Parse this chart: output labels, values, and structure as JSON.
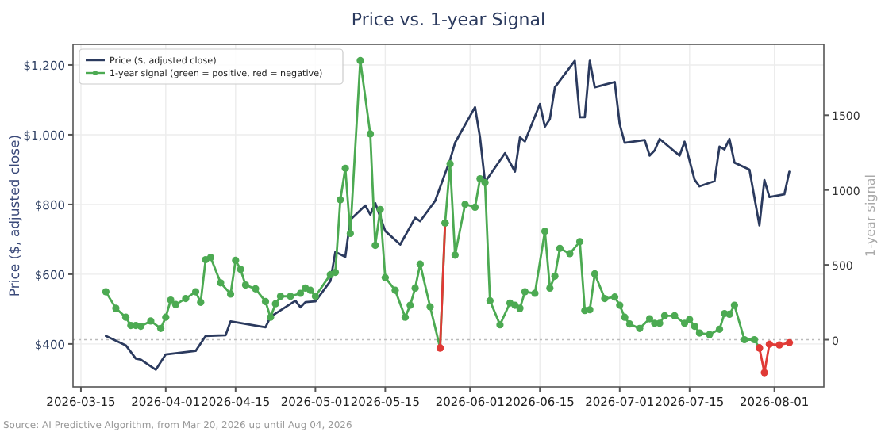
{
  "chart_data": {
    "type": "line",
    "title": "Price vs. 1-year Signal",
    "ylabel": "Price ($, adjusted close)",
    "y2label": "1-year signal",
    "xlim": [
      "2026-03-13T10:00",
      "2026-08-10T22:00"
    ],
    "xticks": [
      "2026-03-15",
      "2026-04-01",
      "2026-04-15",
      "2026-05-01",
      "2026-05-15",
      "2026-06-01",
      "2026-06-15",
      "2026-07-01",
      "2026-07-15",
      "2026-08-01"
    ],
    "ylim": [
      277,
      1259
    ],
    "yticks": [
      {
        "value": 400,
        "label": "$400"
      },
      {
        "value": 600,
        "label": "$600"
      },
      {
        "value": 800,
        "label": "$800"
      },
      {
        "value": 1000,
        "label": "$1,000"
      },
      {
        "value": 1200,
        "label": "$1,200"
      }
    ],
    "y2lim": [
      -315,
      1973
    ],
    "y2ticks": [
      0,
      500,
      1000,
      1500
    ],
    "grid": true,
    "legend": "top left",
    "ref_lines": [
      {
        "axis": "y2",
        "value": 0,
        "color": "#bbbbbb",
        "line_style": "dotted"
      }
    ],
    "annotations": [
      "Source: AI Predictive Algorithm, from Mar 20, 2026 up until Aug 04, 2026"
    ],
    "series": [
      {
        "name": "Price ($, adjusted close)",
        "color": "#2b3a5e",
        "marker": "none",
        "x": [
          "2026-03-20",
          "2026-03-24",
          "2026-03-26",
          "2026-03-27",
          "2026-03-30",
          "2026-04-01",
          "2026-04-07",
          "2026-04-09",
          "2026-04-13",
          "2026-04-14",
          "2026-04-21",
          "2026-04-22",
          "2026-04-27",
          "2026-04-28",
          "2026-04-29",
          "2026-05-01",
          "2026-05-04",
          "2026-05-05",
          "2026-05-07",
          "2026-05-08",
          "2026-05-11",
          "2026-05-12",
          "2026-05-13",
          "2026-05-15",
          "2026-05-18",
          "2026-05-21",
          "2026-05-22",
          "2026-05-25",
          "2026-05-28",
          "2026-05-29",
          "2026-06-02",
          "2026-06-03",
          "2026-06-04",
          "2026-06-08",
          "2026-06-10",
          "2026-06-11",
          "2026-06-12",
          "2026-06-15",
          "2026-06-16",
          "2026-06-17",
          "2026-06-18",
          "2026-06-22",
          "2026-06-23",
          "2026-06-24",
          "2026-06-25",
          "2026-06-26",
          "2026-06-30",
          "2026-07-01",
          "2026-07-02",
          "2026-07-06",
          "2026-07-07",
          "2026-07-08",
          "2026-07-09",
          "2026-07-13",
          "2026-07-14",
          "2026-07-16",
          "2026-07-17",
          "2026-07-20",
          "2026-07-21",
          "2026-07-22",
          "2026-07-23",
          "2026-07-24",
          "2026-07-27",
          "2026-07-29",
          "2026-07-30",
          "2026-07-31",
          "2026-08-03",
          "2026-08-04"
        ],
        "values": [
          423,
          396,
          358,
          355,
          326,
          370,
          380,
          423,
          425,
          465,
          448,
          478,
          524,
          505,
          520,
          522,
          580,
          664,
          650,
          756,
          797,
          771,
          804,
          724,
          685,
          762,
          752,
          810,
          928,
          977,
          1079,
          992,
          864,
          947,
          894,
          992,
          981,
          1088,
          1023,
          1045,
          1136,
          1212,
          1050,
          1050,
          1212,
          1136,
          1151,
          1030,
          977,
          985,
          940,
          955,
          988,
          940,
          980,
          871,
          852,
          867,
          966,
          958,
          988,
          920,
          900,
          740,
          870,
          821,
          829,
          894
        ]
      },
      {
        "name": "1-year signal (green = positive, red = negative)",
        "color": "#4caa52",
        "marker": "circle",
        "axis": "y2",
        "x": [
          "2026-03-20",
          "2026-03-22",
          "2026-03-24",
          "2026-03-25",
          "2026-03-26",
          "2026-03-27",
          "2026-03-29",
          "2026-03-31",
          "2026-04-01",
          "2026-04-02",
          "2026-04-03",
          "2026-04-05",
          "2026-04-07",
          "2026-04-08",
          "2026-04-09",
          "2026-04-10",
          "2026-04-12",
          "2026-04-14",
          "2026-04-15",
          "2026-04-16",
          "2026-04-17",
          "2026-04-19",
          "2026-04-21",
          "2026-04-22",
          "2026-04-23",
          "2026-04-24",
          "2026-04-26",
          "2026-04-28",
          "2026-04-29",
          "2026-04-30",
          "2026-05-01",
          "2026-05-04",
          "2026-05-05",
          "2026-05-06",
          "2026-05-07",
          "2026-05-08",
          "2026-05-10",
          "2026-05-12",
          "2026-05-13",
          "2026-05-14",
          "2026-05-15",
          "2026-05-17",
          "2026-05-19",
          "2026-05-20",
          "2026-05-21",
          "2026-05-22",
          "2026-05-24",
          "2026-05-26",
          "2026-05-27",
          "2026-05-28",
          "2026-05-29",
          "2026-05-31",
          "2026-06-02",
          "2026-06-03",
          "2026-06-04",
          "2026-06-05",
          "2026-06-07",
          "2026-06-09",
          "2026-06-10",
          "2026-06-11",
          "2026-06-12",
          "2026-06-14",
          "2026-06-16",
          "2026-06-17",
          "2026-06-18",
          "2026-06-19",
          "2026-06-21",
          "2026-06-23",
          "2026-06-24",
          "2026-06-25",
          "2026-06-26",
          "2026-06-28",
          "2026-06-30",
          "2026-07-01",
          "2026-07-02",
          "2026-07-03",
          "2026-07-05",
          "2026-07-07",
          "2026-07-08",
          "2026-07-09",
          "2026-07-10",
          "2026-07-12",
          "2026-07-14",
          "2026-07-15",
          "2026-07-16",
          "2026-07-17",
          "2026-07-19",
          "2026-07-21",
          "2026-07-22",
          "2026-07-23",
          "2026-07-24",
          "2026-07-26",
          "2026-07-28",
          "2026-07-29"
        ],
        "values": [
          320,
          210,
          150,
          95,
          95,
          90,
          125,
          75,
          150,
          265,
          235,
          275,
          320,
          250,
          535,
          550,
          380,
          305,
          530,
          470,
          365,
          340,
          255,
          150,
          240,
          290,
          290,
          310,
          345,
          330,
          290,
          435,
          450,
          935,
          1145,
          710,
          1865,
          1375,
          630,
          870,
          415,
          330,
          150,
          230,
          345,
          505,
          220,
          -55,
          780,
          1175,
          565,
          905,
          885,
          1075,
          1050,
          260,
          100,
          245,
          230,
          210,
          320,
          310,
          725,
          345,
          425,
          610,
          575,
          655,
          195,
          200,
          440,
          275,
          285,
          230,
          150,
          105,
          75,
          140,
          110,
          110,
          160,
          160,
          110,
          135,
          90,
          45,
          35,
          70,
          175,
          170,
          230,
          0,
          0,
          -55
        ],
        "colors": [
          "#4caa52",
          "#4caa52",
          "#4caa52",
          "#4caa52",
          "#4caa52",
          "#4caa52",
          "#4caa52",
          "#4caa52",
          "#4caa52",
          "#4caa52",
          "#4caa52",
          "#4caa52",
          "#4caa52",
          "#4caa52",
          "#4caa52",
          "#4caa52",
          "#4caa52",
          "#4caa52",
          "#4caa52",
          "#4caa52",
          "#4caa52",
          "#4caa52",
          "#4caa52",
          "#4caa52",
          "#4caa52",
          "#4caa52",
          "#4caa52",
          "#4caa52",
          "#4caa52",
          "#4caa52",
          "#4caa52",
          "#4caa52",
          "#4caa52",
          "#4caa52",
          "#4caa52",
          "#4caa52",
          "#4caa52",
          "#4caa52",
          "#4caa52",
          "#4caa52",
          "#4caa52",
          "#4caa52",
          "#4caa52",
          "#4caa52",
          "#4caa52",
          "#4caa52",
          "#4caa52",
          "#e03a36",
          "#4caa52",
          "#4caa52",
          "#4caa52",
          "#4caa52",
          "#4caa52",
          "#4caa52",
          "#4caa52",
          "#4caa52",
          "#4caa52",
          "#4caa52",
          "#4caa52",
          "#4caa52",
          "#4caa52",
          "#4caa52",
          "#4caa52",
          "#4caa52",
          "#4caa52",
          "#4caa52",
          "#4caa52",
          "#4caa52",
          "#4caa52",
          "#4caa52",
          "#4caa52",
          "#4caa52",
          "#4caa52",
          "#4caa52",
          "#4caa52",
          "#4caa52",
          "#4caa52",
          "#4caa52",
          "#4caa52",
          "#4caa52",
          "#4caa52",
          "#4caa52",
          "#4caa52",
          "#4caa52",
          "#4caa52",
          "#4caa52",
          "#4caa52",
          "#4caa52",
          "#4caa52",
          "#4caa52",
          "#4caa52",
          "#4caa52",
          "#4caa52",
          "#e03a36"
        ]
      },
      {
        "color": "#e03a36",
        "marker": "circle",
        "axis": "y2",
        "colors": [
          "#e03a36",
          "#4caa52",
          "#e03a36",
          "#e03a36",
          "#e03a36",
          "#e03a36",
          "#e03a36",
          "#e03a36"
        ],
        "x": [
          "2026-05-26",
          "2026-05-27",
          "2026-07-01",
          "2026-07-29",
          "2026-07-30",
          "2026-07-31",
          "2026-08-02",
          "2026-08-04"
        ],
        "values": [
          -55,
          780,
          null,
          -55,
          -220,
          -30,
          -35,
          -20
        ]
      }
    ]
  }
}
